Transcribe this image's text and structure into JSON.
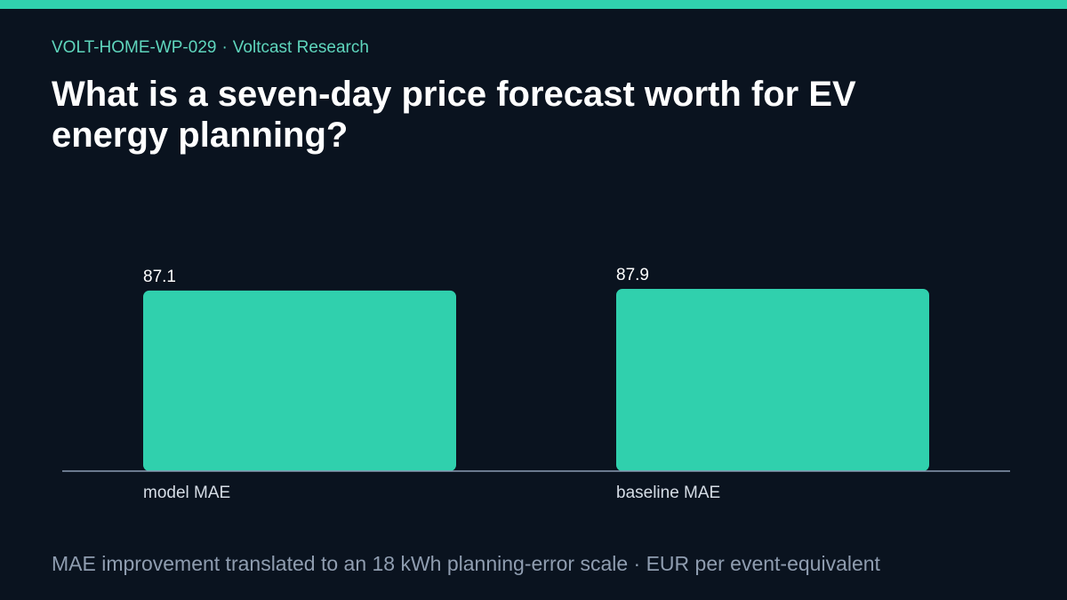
{
  "header": {
    "report_id": "VOLT-HOME-WP-029",
    "separator": "·",
    "publisher": "Voltcast Research",
    "title": "What is a seven-day price forecast worth for EV energy planning?"
  },
  "colors": {
    "accent": "#30d0ad",
    "background": "#0a131f",
    "axis": "#8a9bb4"
  },
  "chart_data": {
    "type": "bar",
    "categories": [
      "model MAE",
      "baseline MAE"
    ],
    "values": [
      87.1,
      87.9
    ],
    "value_labels": [
      "87.1",
      "87.9"
    ],
    "ylim": [
      0,
      87.9
    ],
    "grid": false,
    "legend": "none"
  },
  "footer": {
    "note": "MAE improvement translated to an 18 kWh planning-error scale · EUR per event-equivalent"
  }
}
